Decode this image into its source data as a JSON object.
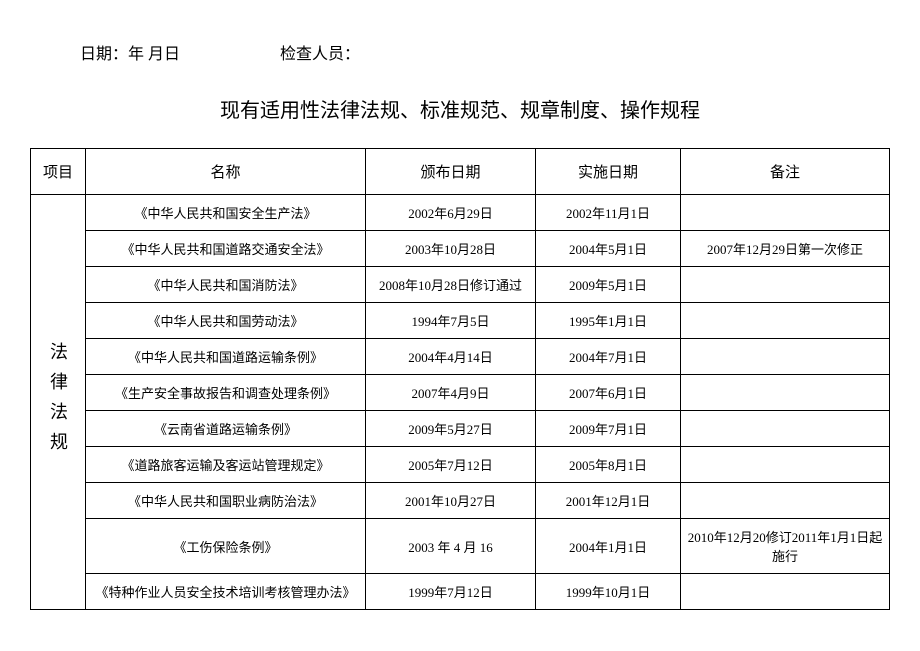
{
  "header": {
    "date_label": "日期：年 月日",
    "inspector_label": "检查人员："
  },
  "title": "现有适用性法律法规、标准规范、规章制度、操作规程",
  "table": {
    "columns": [
      "项目",
      "名称",
      "颁布日期",
      "实施日期",
      "备注"
    ],
    "category_label": "法律法规",
    "rows": [
      {
        "name": "《中华人民共和国安全生产法》",
        "promulgate": "2002年6月29日",
        "implement": "2002年11月1日",
        "remark": ""
      },
      {
        "name": "《中华人民共和国道路交通安全法》",
        "promulgate": "2003年10月28日",
        "implement": "2004年5月1日",
        "remark": "2007年12月29日第一次修正"
      },
      {
        "name": "《中华人民共和国消防法》",
        "promulgate": "2008年10月28日修订通过",
        "implement": "2009年5月1日",
        "remark": ""
      },
      {
        "name": "《中华人民共和国劳动法》",
        "promulgate": "1994年7月5日",
        "implement": "1995年1月1日",
        "remark": ""
      },
      {
        "name": "《中华人民共和国道路运输条例》",
        "promulgate": "2004年4月14日",
        "implement": "2004年7月1日",
        "remark": ""
      },
      {
        "name": "《生产安全事故报告和调查处理条例》",
        "promulgate": "2007年4月9日",
        "implement": "2007年6月1日",
        "remark": ""
      },
      {
        "name": "《云南省道路运输条例》",
        "promulgate": "2009年5月27日",
        "implement": "2009年7月1日",
        "remark": ""
      },
      {
        "name": "《道路旅客运输及客运站管理规定》",
        "promulgate": "2005年7月12日",
        "implement": "2005年8月1日",
        "remark": ""
      },
      {
        "name": "《中华人民共和国职业病防治法》",
        "promulgate": "2001年10月27日",
        "implement": "2001年12月1日",
        "remark": ""
      },
      {
        "name": "《工伤保险条例》",
        "promulgate": "2003 年  4 月  16",
        "implement": "2004年1月1日",
        "remark": "2010年12月20修订2011年1月1日起施行"
      },
      {
        "name": "《特种作业人员安全技术培训考核管理办法》",
        "promulgate": "1999年7月12日",
        "implement": "1999年10月1日",
        "remark": ""
      }
    ]
  },
  "styling": {
    "background_color": "#ffffff",
    "text_color": "#000000",
    "border_color": "#000000",
    "title_fontsize": 20,
    "header_fontsize": 15,
    "cell_fontsize": 13,
    "vertical_label_fontsize": 18,
    "font_family": "SimSun"
  }
}
